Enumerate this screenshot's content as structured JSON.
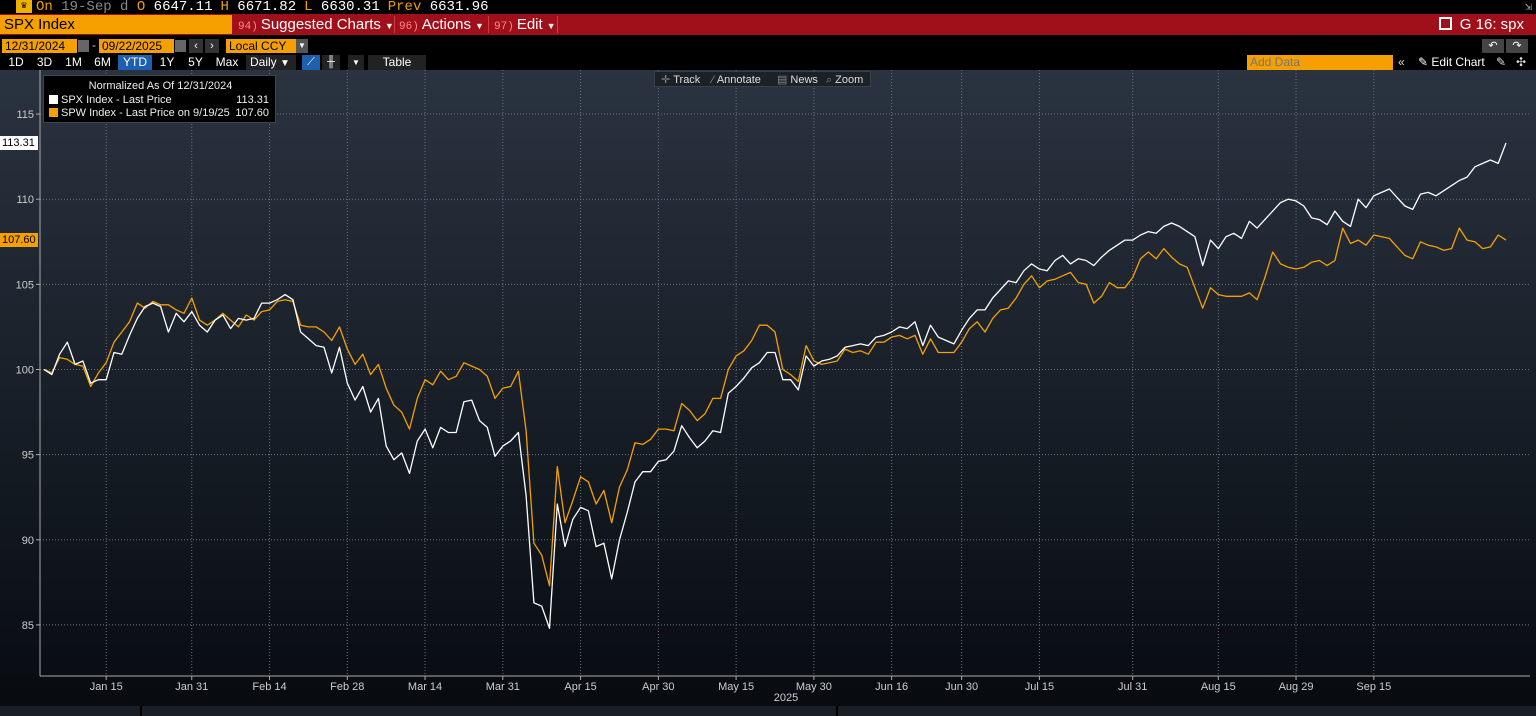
{
  "quote_bar": {
    "icon": "gold-icon",
    "on_label": "On",
    "date": "19-Sep",
    "suffix": "d",
    "open_label": "O",
    "open": "6647.11",
    "high_label": "H",
    "high": "6671.82",
    "low_label": "L",
    "low": "6630.31",
    "prev_label": "Prev",
    "prev": "6631.96"
  },
  "red_bar": {
    "security": "SPX Index",
    "menus": [
      {
        "num": "94)",
        "label": "Suggested Charts"
      },
      {
        "num": "96)",
        "label": "Actions"
      },
      {
        "num": "97)",
        "label": "Edit"
      }
    ],
    "chart_id": "G 16: spx"
  },
  "date_row": {
    "start": "12/31/2024",
    "dash": "-",
    "end": "09/22/2025",
    "currency": "Local CCY"
  },
  "range_row": {
    "ranges": [
      "1D",
      "3D",
      "1M",
      "6M",
      "YTD",
      "1Y",
      "5Y",
      "Max"
    ],
    "active": "YTD",
    "frequency": "Daily",
    "table_label": "Table",
    "add_data_placeholder": "Add Data",
    "edit_chart_label": "Edit Chart"
  },
  "float_tools": {
    "track": "Track",
    "annotate": "Annotate",
    "news": "News",
    "zoom": "Zoom"
  },
  "legend": {
    "title": "Normalized As Of 12/31/2024",
    "rows": [
      {
        "label": "SPX Index - Last Price",
        "value": "113.31",
        "color": "#ffffff"
      },
      {
        "label": "SPW Index - Last Price on 9/19/25",
        "value": "107.60",
        "color": "#f5a000"
      }
    ]
  },
  "chart_data": {
    "type": "line",
    "title": "",
    "xlabel": "2025",
    "ylabel": "",
    "ylim": [
      82,
      117
    ],
    "yticks": [
      85,
      90,
      95,
      100,
      105,
      110,
      115
    ],
    "grid": true,
    "legend_position": "top-left",
    "x_ticks": [
      {
        "label": "Jan 15",
        "x": 8
      },
      {
        "label": "Jan 31",
        "x": 19
      },
      {
        "label": "Feb 14",
        "x": 29
      },
      {
        "label": "Feb 28",
        "x": 39
      },
      {
        "label": "Mar 14",
        "x": 49
      },
      {
        "label": "Mar 31",
        "x": 59
      },
      {
        "label": "Apr 15",
        "x": 69
      },
      {
        "label": "Apr 30",
        "x": 79
      },
      {
        "label": "May 15",
        "x": 89
      },
      {
        "label": "May 30",
        "x": 99
      },
      {
        "label": "Jun 16",
        "x": 109
      },
      {
        "label": "Jun 30",
        "x": 118
      },
      {
        "label": "Jul 15",
        "x": 128
      },
      {
        "label": "Jul 31",
        "x": 140
      },
      {
        "label": "Aug 15",
        "x": 151
      },
      {
        "label": "Aug 29",
        "x": 161
      },
      {
        "label": "Sep 15",
        "x": 171
      }
    ],
    "last_labels": {
      "SPX Index": "113.31",
      "SPW Index": "107.60"
    },
    "series": [
      {
        "name": "SPX Index - Last Price",
        "color": "#ffffff",
        "values": [
          100.0,
          99.7,
          100.9,
          101.6,
          100.3,
          100.5,
          99.2,
          99.4,
          99.4,
          101.0,
          100.9,
          102.0,
          103.0,
          103.7,
          103.9,
          103.7,
          102.2,
          103.3,
          102.8,
          103.4,
          102.6,
          102.2,
          102.9,
          103.2,
          102.4,
          103.0,
          102.9,
          103.0,
          103.9,
          103.9,
          104.1,
          104.4,
          104.1,
          102.2,
          101.8,
          101.4,
          101.3,
          99.8,
          101.3,
          99.2,
          98.2,
          99.0,
          97.5,
          98.3,
          95.5,
          94.7,
          95.1,
          93.9,
          95.8,
          96.5,
          95.4,
          96.6,
          96.3,
          96.3,
          98.1,
          98.2,
          97.0,
          96.6,
          94.9,
          95.5,
          95.8,
          96.3,
          92.6,
          86.3,
          86.1,
          84.8,
          92.1,
          89.6,
          91.2,
          91.9,
          91.7,
          89.6,
          89.8,
          87.7,
          90.0,
          91.6,
          93.4,
          94.0,
          94.0,
          94.6,
          94.7,
          95.2,
          96.7,
          96.0,
          95.4,
          95.8,
          96.4,
          96.3,
          98.6,
          99.0,
          99.5,
          100.1,
          100.4,
          101.0,
          101.0,
          99.4,
          99.4,
          98.8,
          100.8,
          100.2,
          100.5,
          100.6,
          100.8,
          101.3,
          101.4,
          101.5,
          101.4,
          101.9,
          102.0,
          102.2,
          102.5,
          102.4,
          102.8,
          101.4,
          102.6,
          101.9,
          101.7,
          101.5,
          102.3,
          103.0,
          103.5,
          103.5,
          104.2,
          104.7,
          105.2,
          105.1,
          105.8,
          106.2,
          105.9,
          105.8,
          106.4,
          106.7,
          106.2,
          106.5,
          106.4,
          106.1,
          106.6,
          107.0,
          107.3,
          107.6,
          107.6,
          107.9,
          108.1,
          108.0,
          108.4,
          108.6,
          108.4,
          108.1,
          107.8,
          106.1,
          107.6,
          107.1,
          107.8,
          108.0,
          107.7,
          108.7,
          108.3,
          108.8,
          109.3,
          109.8,
          110.0,
          109.9,
          109.6,
          108.9,
          108.8,
          108.5,
          109.3,
          108.7,
          108.4,
          110.0,
          109.5,
          110.2,
          110.4,
          110.6,
          110.1,
          109.6,
          109.4,
          110.3,
          110.4,
          110.2,
          110.5,
          110.8,
          111.1,
          111.3,
          111.9,
          112.1,
          112.3,
          112.1,
          113.3
        ]
      },
      {
        "name": "SPW Index - Last Price on 9/19/25",
        "color": "#f5a000",
        "values": [
          100.0,
          99.8,
          100.7,
          100.6,
          100.3,
          100.2,
          99.0,
          99.8,
          100.4,
          101.6,
          102.2,
          102.8,
          103.9,
          103.6,
          104.0,
          103.8,
          103.8,
          103.5,
          103.3,
          104.2,
          102.9,
          102.6,
          102.9,
          103.3,
          102.9,
          102.5,
          103.2,
          102.9,
          103.4,
          103.5,
          104.0,
          104.1,
          104.0,
          102.6,
          102.5,
          102.5,
          102.2,
          101.7,
          102.5,
          101.2,
          100.3,
          100.9,
          99.7,
          100.3,
          98.9,
          97.9,
          97.5,
          96.5,
          98.3,
          99.4,
          99.1,
          99.9,
          99.4,
          99.6,
          100.4,
          100.2,
          100.0,
          99.6,
          98.3,
          98.9,
          99.0,
          99.9,
          96.4,
          89.8,
          89.1,
          87.3,
          94.3,
          91.0,
          92.3,
          93.7,
          93.4,
          92.1,
          92.9,
          91.0,
          93.1,
          94.1,
          95.7,
          95.6,
          95.9,
          96.5,
          96.5,
          96.4,
          98.0,
          97.6,
          97.0,
          97.4,
          98.3,
          98.3,
          100.0,
          100.8,
          101.1,
          101.7,
          102.6,
          102.6,
          102.2,
          100.0,
          99.7,
          99.3,
          101.4,
          100.5,
          100.3,
          100.4,
          100.5,
          101.2,
          101.0,
          101.1,
          100.9,
          101.6,
          101.6,
          101.9,
          102.0,
          101.8,
          102.0,
          100.9,
          101.8,
          101.0,
          101.0,
          101.0,
          101.6,
          102.4,
          102.8,
          102.2,
          103.0,
          103.5,
          103.6,
          104.2,
          105.0,
          105.5,
          104.8,
          105.2,
          105.3,
          105.5,
          105.7,
          105.1,
          105.0,
          103.9,
          104.3,
          105.1,
          104.8,
          104.8,
          105.4,
          106.5,
          106.9,
          106.5,
          107.1,
          106.6,
          106.2,
          106.0,
          104.8,
          103.6,
          104.8,
          104.4,
          104.3,
          104.3,
          104.3,
          104.5,
          104.1,
          105.4,
          106.9,
          106.2,
          106.0,
          105.9,
          106.0,
          106.3,
          106.4,
          106.1,
          106.4,
          108.3,
          107.4,
          107.6,
          107.3,
          107.9,
          107.8,
          107.7,
          107.2,
          106.7,
          106.5,
          107.5,
          107.3,
          107.2,
          107.0,
          107.1,
          108.3,
          107.6,
          107.5,
          107.1,
          107.2,
          107.9,
          107.6
        ]
      }
    ]
  }
}
